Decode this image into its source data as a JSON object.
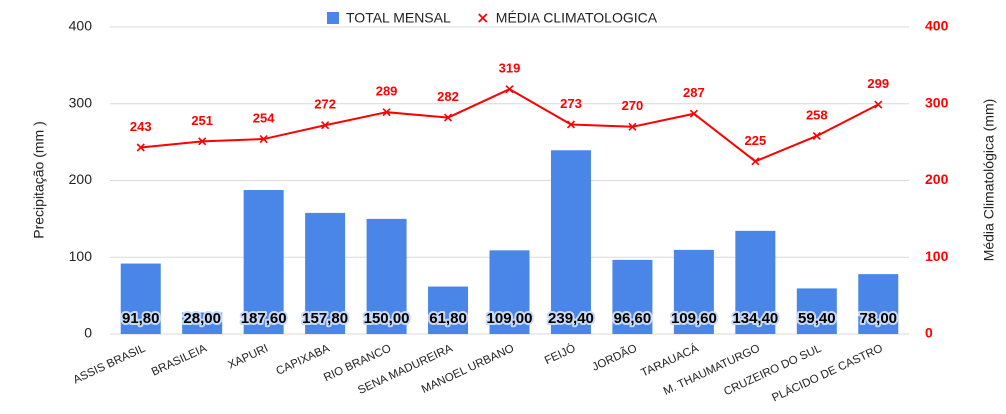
{
  "chart_data": {
    "type": "combo",
    "categories": [
      "ASSIS BRASIL",
      "BRASILEIA",
      "XAPURI",
      "CAPIXABA",
      "RIO BRANCO",
      "SENA MADUREIRA",
      "MANOEL URBANO",
      "FEIJÓ",
      "JORDÃO",
      "TARAUACÁ",
      "M. THAUMATURGO",
      "CRUZEIRO DO SUL",
      "PLÁCIDO DE CASTRO"
    ],
    "series": [
      {
        "name": "TOTAL MENSAL",
        "type": "bar",
        "color": "#4a86e8",
        "values": [
          91.8,
          28,
          187.6,
          157.8,
          150,
          61.8,
          109,
          239.4,
          96.6,
          109.6,
          134.4,
          59.4,
          78
        ],
        "value_labels": [
          "91,80",
          "28,00",
          "187,60",
          "157,80",
          "150,00",
          "61,80",
          "109,00",
          "239,40",
          "96,60",
          "109,60",
          "134,40",
          "59,40",
          "78,00"
        ]
      },
      {
        "name": "MÉDIA CLIMATOLOGICA",
        "type": "line",
        "axis": "y2",
        "color": "#ff0000",
        "values": [
          243,
          251,
          254,
          272,
          289,
          282,
          319,
          273,
          270,
          287,
          225,
          258,
          299
        ]
      }
    ],
    "ylabel": "Precipitação (mm )",
    "y2label": "Média Climatológica (mm)",
    "ylim": [
      0,
      400
    ],
    "yticks": [
      0,
      100,
      200,
      300,
      400
    ],
    "y2lim": [
      0,
      400
    ],
    "y2ticks": [
      0,
      100,
      200,
      300,
      400
    ],
    "grid": true,
    "legend": "top"
  }
}
